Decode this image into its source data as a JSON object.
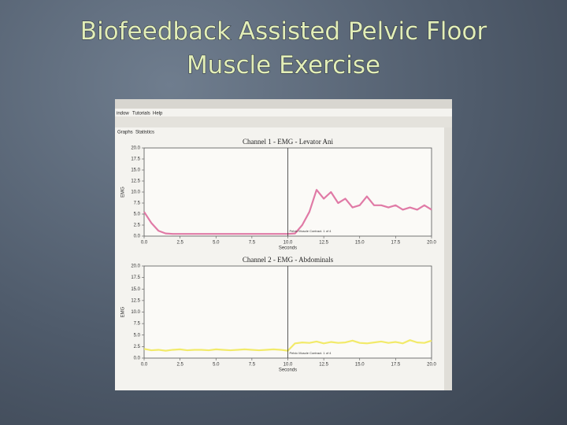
{
  "slide": {
    "title_lines": [
      "Biofeedback Assisted Pelvic Floor",
      "Muscle Exercise"
    ]
  },
  "app": {
    "menu": [
      "indow",
      "Tutorials",
      "Help"
    ],
    "tabs": [
      "Graphs",
      "Statistics"
    ]
  },
  "chart_data": [
    {
      "type": "line",
      "title": "Channel 1 - EMG - Levator Ani",
      "x_label": "Seconds",
      "y_label": "EMG",
      "x": [
        0,
        0.5,
        1,
        1.5,
        2,
        2.5,
        3,
        3.5,
        4,
        4.5,
        5,
        5.5,
        6,
        6.5,
        7,
        7.5,
        8,
        8.5,
        9,
        9.5,
        10,
        10.5,
        11,
        11.5,
        12,
        12.5,
        13,
        13.5,
        14,
        14.5,
        15,
        15.5,
        16,
        16.5,
        17,
        17.5,
        18,
        18.5,
        19,
        19.5,
        20
      ],
      "series": [
        {
          "color": "#e07aa6",
          "values": [
            5.5,
            3,
            1.2,
            0.6,
            0.5,
            0.5,
            0.5,
            0.5,
            0.5,
            0.5,
            0.5,
            0.5,
            0.5,
            0.5,
            0.5,
            0.5,
            0.5,
            0.5,
            0.5,
            0.5,
            0.5,
            0.6,
            2.5,
            5.5,
            10.5,
            8.5,
            10,
            7.5,
            8.5,
            6.5,
            7,
            9,
            7,
            7,
            6.5,
            7,
            6,
            6.5,
            6,
            7,
            6
          ]
        }
      ],
      "xlim": [
        0,
        20
      ],
      "ylim": [
        0,
        20
      ],
      "xticks": [
        {
          "value": 0,
          "label": "0.0"
        },
        {
          "value": 2.5,
          "label": "2.5"
        },
        {
          "value": 5,
          "label": "5.0"
        },
        {
          "value": 7.5,
          "label": "7.5"
        },
        {
          "value": 10,
          "label": "10.0"
        },
        {
          "value": 12.5,
          "label": "12.5"
        },
        {
          "value": 15,
          "label": "15.0"
        },
        {
          "value": 17.5,
          "label": "17.5"
        },
        {
          "value": 20,
          "label": "20.0"
        }
      ],
      "yticks": [
        {
          "value": 0,
          "label": "0.0"
        },
        {
          "value": 2.5,
          "label": "2.5"
        },
        {
          "value": 5,
          "label": "5.0"
        },
        {
          "value": 7.5,
          "label": "7.5"
        },
        {
          "value": 10,
          "label": "10.0"
        },
        {
          "value": 12.5,
          "label": "12.5"
        },
        {
          "value": 15,
          "label": "15.0"
        },
        {
          "value": 17.5,
          "label": "17.5"
        },
        {
          "value": 20,
          "label": "20.0"
        }
      ],
      "annotation": {
        "x": 10,
        "text": "Pelvic Muscle Contract. 1 of 4"
      }
    },
    {
      "type": "line",
      "title": "Channel 2 - EMG - Abdominals",
      "x_label": "Seconds",
      "y_label": "EMG",
      "x": [
        0,
        0.5,
        1,
        1.5,
        2,
        2.5,
        3,
        3.5,
        4,
        4.5,
        5,
        5.5,
        6,
        6.5,
        7,
        7.5,
        8,
        8.5,
        9,
        9.5,
        10,
        10.5,
        11,
        11.5,
        12,
        12.5,
        13,
        13.5,
        14,
        14.5,
        15,
        15.5,
        16,
        16.5,
        17,
        17.5,
        18,
        18.5,
        19,
        19.5,
        20
      ],
      "series": [
        {
          "color": "#f2ea6a",
          "values": [
            2,
            1.7,
            1.8,
            1.6,
            1.8,
            1.9,
            1.7,
            1.8,
            1.8,
            1.7,
            1.9,
            1.8,
            1.7,
            1.8,
            1.9,
            1.8,
            1.7,
            1.8,
            1.9,
            1.8,
            1.6,
            3.2,
            3.4,
            3.3,
            3.6,
            3.2,
            3.5,
            3.3,
            3.4,
            3.8,
            3.3,
            3.2,
            3.4,
            3.6,
            3.3,
            3.5,
            3.2,
            3.9,
            3.4,
            3.3,
            3.8
          ]
        }
      ],
      "xlim": [
        0,
        20
      ],
      "ylim": [
        0,
        20
      ],
      "xticks": [
        {
          "value": 0,
          "label": "0.0"
        },
        {
          "value": 2.5,
          "label": "2.5"
        },
        {
          "value": 5,
          "label": "5.0"
        },
        {
          "value": 7.5,
          "label": "7.5"
        },
        {
          "value": 10,
          "label": "10.0"
        },
        {
          "value": 12.5,
          "label": "12.5"
        },
        {
          "value": 15,
          "label": "15.0"
        },
        {
          "value": 17.5,
          "label": "17.5"
        },
        {
          "value": 20,
          "label": "20.0"
        }
      ],
      "yticks": [
        {
          "value": 0,
          "label": "0.0"
        },
        {
          "value": 2.5,
          "label": "2.5"
        },
        {
          "value": 5,
          "label": "5.0"
        },
        {
          "value": 7.5,
          "label": "7.5"
        },
        {
          "value": 10,
          "label": "10.0"
        },
        {
          "value": 12.5,
          "label": "12.5"
        },
        {
          "value": 15,
          "label": "15.0"
        },
        {
          "value": 17.5,
          "label": "17.5"
        },
        {
          "value": 20,
          "label": "20.0"
        }
      ],
      "annotation": {
        "x": 10,
        "text": "Pelvic Muscle Contract. 1 of 4"
      }
    }
  ]
}
